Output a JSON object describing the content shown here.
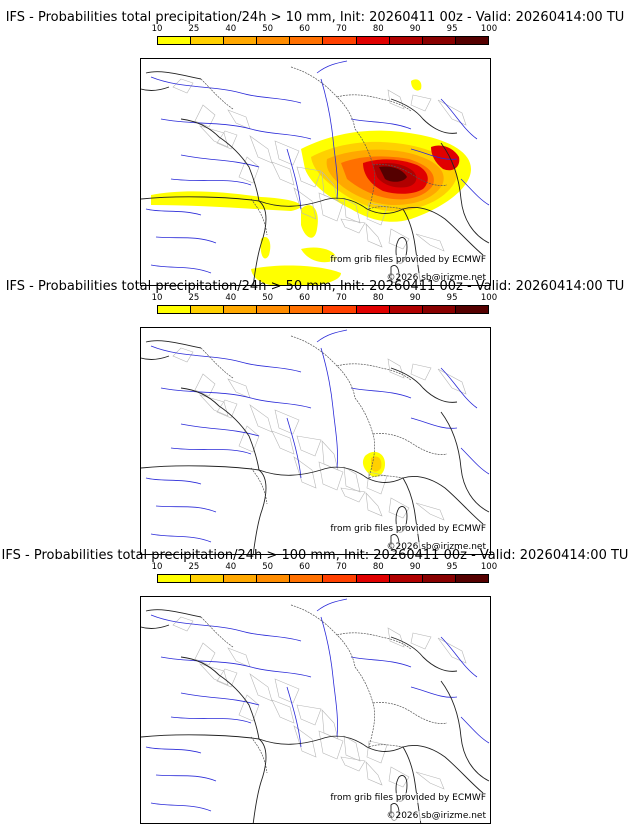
{
  "colorbar": {
    "ticks": [
      "10",
      "25",
      "40",
      "50",
      "60",
      "70",
      "80",
      "90",
      "95",
      "100"
    ],
    "colors": [
      "#ffff00",
      "#ffd000",
      "#ffa800",
      "#ff8c00",
      "#ff7000",
      "#ff4000",
      "#e00000",
      "#b00000",
      "#880000",
      "#550000"
    ]
  },
  "credits": {
    "source": "from grib files provided by ECMWF",
    "copyright": "©2026 sb@irizme.net"
  },
  "panels": [
    {
      "title": "IFS - Probabilities total precipitation/24h > 10 mm, Init: 20260411 00z - Valid: 20260414:00 TU"
    },
    {
      "title": "IFS - Probabilities total precipitation/24h > 50 mm, Init: 20260411 00z - Valid: 20260414:00 TU"
    },
    {
      "title": "IFS - Probabilities total precipitation/24h > 100 mm, Init: 20260411 00z - Valid: 20260414:00 TU"
    }
  ]
}
